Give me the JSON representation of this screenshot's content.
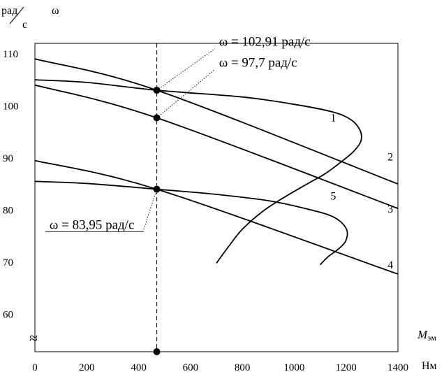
{
  "chart_data": {
    "type": "line",
    "title": "",
    "ylabel_top": "рад",
    "ylabel_bottom": "с",
    "ysymbol": "ω",
    "xlabel": "M",
    "xlabel_sub": "эм",
    "xunit": "Нм",
    "xlim": [
      0,
      1400
    ],
    "ylim": [
      52.8,
      112
    ],
    "xticks": [
      0,
      200,
      400,
      600,
      800,
      1000,
      1200,
      1400
    ],
    "yticks": [
      60,
      70,
      80,
      90,
      100,
      110
    ],
    "axis_break_symbol": "≈",
    "grid": false,
    "series": [
      {
        "label": "1",
        "x": [
          0,
          200,
          470,
          800,
          1000,
          1150,
          1220,
          1255,
          1257,
          1230,
          1180,
          1120,
          1050,
          960,
          880,
          800,
          750,
          700
        ],
        "y": [
          105,
          104.5,
          103,
          101.7,
          100.3,
          98.8,
          97.3,
          95.2,
          93.2,
          91.3,
          89.2,
          87,
          85,
          82.4,
          79.8,
          76.3,
          73.2,
          69.8
        ]
      },
      {
        "label": "2",
        "x": [
          0,
          470,
          1400
        ],
        "y": [
          109,
          103,
          85
        ]
      },
      {
        "label": "3",
        "x": [
          0,
          470,
          1400
        ],
        "y": [
          104,
          97.7,
          80.3
        ]
      },
      {
        "label": "4",
        "x": [
          0,
          470,
          1400
        ],
        "y": [
          89.5,
          84,
          67.7
        ]
      },
      {
        "label": "5",
        "x": [
          0,
          200,
          470,
          700,
          900,
          1050,
          1150,
          1200,
          1200,
          1170,
          1130,
          1100
        ],
        "y": [
          85.5,
          85.1,
          84,
          83,
          81.8,
          80.2,
          78.7,
          76.5,
          74.2,
          72.5,
          71,
          69.5
        ]
      }
    ],
    "series_labels": [
      {
        "text": "1",
        "x": 1140,
        "y": 97
      },
      {
        "text": "2",
        "x": 1360,
        "y": 89.5
      },
      {
        "text": "3",
        "x": 1360,
        "y": 79.5
      },
      {
        "text": "4",
        "x": 1360,
        "y": 68.8
      },
      {
        "text": "5",
        "x": 1140,
        "y": 82
      }
    ],
    "markers": [
      {
        "x": 470,
        "y": 103
      },
      {
        "x": 470,
        "y": 97.7
      },
      {
        "x": 470,
        "y": 84
      },
      {
        "x": 470,
        "y": 52.8
      }
    ],
    "reference_line": {
      "x": 470,
      "style": "dashed"
    },
    "annotations": [
      {
        "text": "ω = 102,91 рад/с",
        "point": [
          470,
          103
        ],
        "label_at": [
          710,
          111.5
        ]
      },
      {
        "text": "ω = 97,7 рад/с",
        "point": [
          470,
          97.7
        ],
        "label_at": [
          710,
          107.5
        ]
      },
      {
        "text": "ω = 83,95 рад/с",
        "point": [
          470,
          84
        ],
        "label_at": [
          390,
          78
        ]
      }
    ]
  }
}
